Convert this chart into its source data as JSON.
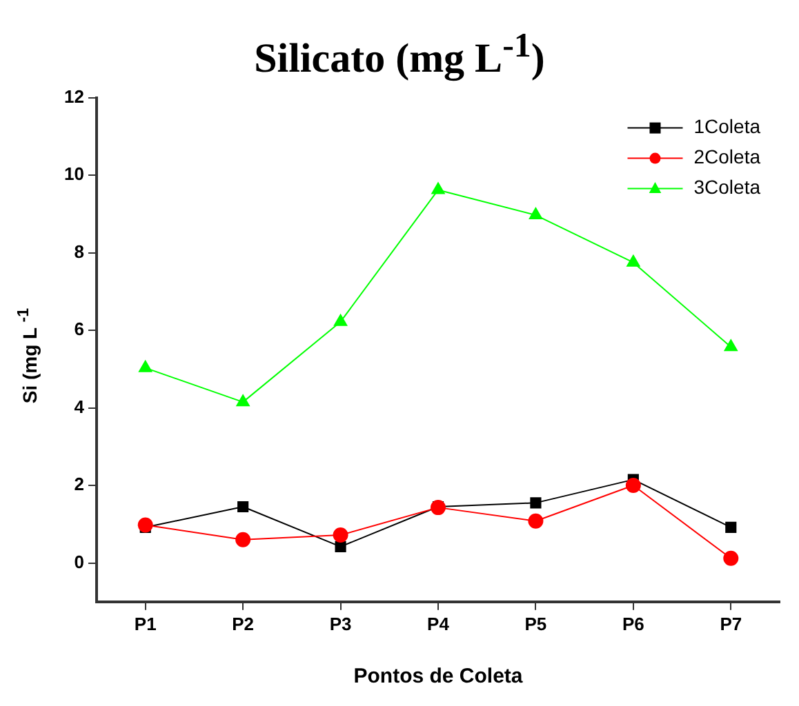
{
  "chart_data": {
    "type": "line",
    "title": "Silicato (mg L$^{-1}$)",
    "xlabel": "Pontos de Coleta",
    "ylabel": "Si (mg L $^{-1}$",
    "categories": [
      "P1",
      "P2",
      "P3",
      "P4",
      "P5",
      "P6",
      "P7"
    ],
    "series": [
      {
        "name": "1Coleta",
        "color": "#000000",
        "marker": "square",
        "values": [
          0.92,
          1.45,
          0.42,
          1.45,
          1.55,
          2.15,
          0.92
        ]
      },
      {
        "name": "2Coleta",
        "color": "#ff0000",
        "marker": "circle",
        "values": [
          0.98,
          0.6,
          0.72,
          1.43,
          1.08,
          2.0,
          0.12
        ]
      },
      {
        "name": "3Coleta",
        "color": "#00ff00",
        "marker": "triangle",
        "values": [
          5.03,
          4.15,
          6.22,
          9.62,
          8.97,
          7.75,
          5.57
        ]
      }
    ],
    "ylim": [
      -1,
      12
    ],
    "yticks": [
      0,
      2,
      4,
      6,
      8,
      10,
      12
    ],
    "grid": false,
    "legend": "top right",
    "line_style": "solid"
  }
}
